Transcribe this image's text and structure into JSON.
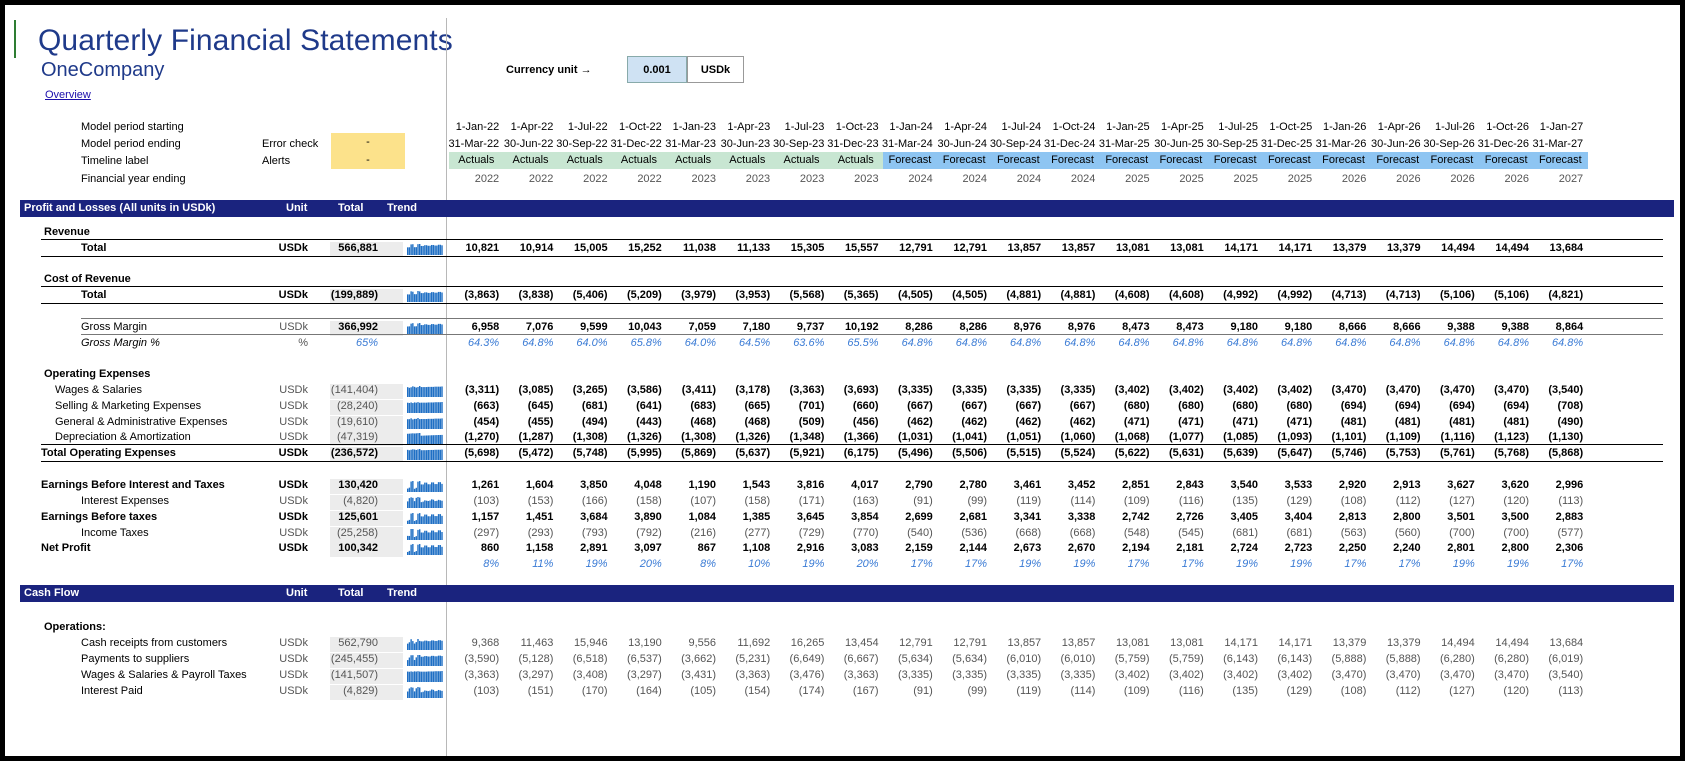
{
  "title": "Quarterly Financial Statements",
  "company": "OneCompany",
  "overview_link": "Overview",
  "currency": {
    "label": "Currency unit →",
    "value": "0.001",
    "unit": "USDk"
  },
  "meta_labels": {
    "period_start": "Model period starting",
    "period_end": "Model period ending",
    "timeline": "Timeline label",
    "fy": "Financial year ending",
    "error_check": "Error check",
    "alerts": "Alerts",
    "error_value": "-",
    "alerts_value": "-"
  },
  "periods": [
    {
      "start": "1-Jan-22",
      "end": "31-Mar-22",
      "label": "Actuals",
      "fy": "2022"
    },
    {
      "start": "1-Apr-22",
      "end": "30-Jun-22",
      "label": "Actuals",
      "fy": "2022"
    },
    {
      "start": "1-Jul-22",
      "end": "30-Sep-22",
      "label": "Actuals",
      "fy": "2022"
    },
    {
      "start": "1-Oct-22",
      "end": "31-Dec-22",
      "label": "Actuals",
      "fy": "2022"
    },
    {
      "start": "1-Jan-23",
      "end": "31-Mar-23",
      "label": "Actuals",
      "fy": "2023"
    },
    {
      "start": "1-Apr-23",
      "end": "30-Jun-23",
      "label": "Actuals",
      "fy": "2023"
    },
    {
      "start": "1-Jul-23",
      "end": "30-Sep-23",
      "label": "Actuals",
      "fy": "2023"
    },
    {
      "start": "1-Oct-23",
      "end": "31-Dec-23",
      "label": "Actuals",
      "fy": "2023"
    },
    {
      "start": "1-Jan-24",
      "end": "31-Mar-24",
      "label": "Forecast",
      "fy": "2024"
    },
    {
      "start": "1-Apr-24",
      "end": "30-Jun-24",
      "label": "Forecast",
      "fy": "2024"
    },
    {
      "start": "1-Jul-24",
      "end": "30-Sep-24",
      "label": "Forecast",
      "fy": "2024"
    },
    {
      "start": "1-Oct-24",
      "end": "31-Dec-24",
      "label": "Forecast",
      "fy": "2024"
    },
    {
      "start": "1-Jan-25",
      "end": "31-Mar-25",
      "label": "Forecast",
      "fy": "2025"
    },
    {
      "start": "1-Apr-25",
      "end": "30-Jun-25",
      "label": "Forecast",
      "fy": "2025"
    },
    {
      "start": "1-Jul-25",
      "end": "30-Sep-25",
      "label": "Forecast",
      "fy": "2025"
    },
    {
      "start": "1-Oct-25",
      "end": "31-Dec-25",
      "label": "Forecast",
      "fy": "2025"
    },
    {
      "start": "1-Jan-26",
      "end": "31-Mar-26",
      "label": "Forecast",
      "fy": "2026"
    },
    {
      "start": "1-Apr-26",
      "end": "30-Jun-26",
      "label": "Forecast",
      "fy": "2026"
    },
    {
      "start": "1-Jul-26",
      "end": "30-Sep-26",
      "label": "Forecast",
      "fy": "2026"
    },
    {
      "start": "1-Oct-26",
      "end": "31-Dec-26",
      "label": "Forecast",
      "fy": "2026"
    },
    {
      "start": "1-Jan-27",
      "end": "31-Mar-27",
      "label": "Forecast",
      "fy": "2027"
    }
  ],
  "colors": {
    "band": "#1a237e",
    "actuals": "#c8e6d2",
    "forecast": "#8ec5f2",
    "spark": "#1f6fc4",
    "alert": "#fce28b",
    "pct": "#3a7bd5"
  },
  "pl_header": {
    "title": "Profit and Losses (All units in USDk)",
    "unit": "Unit",
    "total": "Total",
    "trend": "Trend"
  },
  "cf_header": {
    "title": "Cash Flow",
    "unit": "Unit",
    "total": "Total",
    "trend": "Trend"
  },
  "sections": {
    "revenue": "Revenue",
    "cost_of_revenue": "Cost of Revenue",
    "opex": "Operating Expenses",
    "operations": "Operations:"
  },
  "rows": [
    {
      "id": "rev_total",
      "label": "Total",
      "unit": "USDk",
      "total": "566,881",
      "style": "total",
      "values": [
        "10,821",
        "10,914",
        "15,005",
        "15,252",
        "11,038",
        "11,133",
        "15,305",
        "15,557",
        "12,791",
        "12,791",
        "13,857",
        "13,857",
        "13,081",
        "13,081",
        "14,171",
        "14,171",
        "13,379",
        "13,379",
        "14,494",
        "14,494",
        "13,684"
      ]
    },
    {
      "id": "cor_total",
      "label": "Total",
      "unit": "USDk",
      "total": "(199,889)",
      "style": "total",
      "values": [
        "(3,863)",
        "(3,838)",
        "(5,406)",
        "(5,209)",
        "(3,979)",
        "(3,953)",
        "(5,568)",
        "(5,365)",
        "(4,505)",
        "(4,505)",
        "(4,881)",
        "(4,881)",
        "(4,608)",
        "(4,608)",
        "(4,992)",
        "(4,992)",
        "(4,713)",
        "(4,713)",
        "(5,106)",
        "(5,106)",
        "(4,821)"
      ]
    },
    {
      "id": "gross_margin",
      "label": "Gross Margin",
      "unit": "USDk",
      "total": "366,992",
      "style": "gm",
      "values": [
        "6,958",
        "7,076",
        "9,599",
        "10,043",
        "7,059",
        "7,180",
        "9,737",
        "10,192",
        "8,286",
        "8,286",
        "8,976",
        "8,976",
        "8,473",
        "8,473",
        "9,180",
        "9,180",
        "8,666",
        "8,666",
        "9,388",
        "9,388",
        "8,864"
      ]
    },
    {
      "id": "gross_margin_pct",
      "label": "Gross Margin %",
      "unit": "%",
      "total": "65%",
      "style": "pct",
      "values": [
        "64.3%",
        "64.8%",
        "64.0%",
        "65.8%",
        "64.0%",
        "64.5%",
        "63.6%",
        "65.5%",
        "64.8%",
        "64.8%",
        "64.8%",
        "64.8%",
        "64.8%",
        "64.8%",
        "64.8%",
        "64.8%",
        "64.8%",
        "64.8%",
        "64.8%",
        "64.8%",
        "64.8%"
      ]
    },
    {
      "id": "wages",
      "label": "Wages & Salaries",
      "unit": "USDk",
      "total": "(141,404)",
      "style": "sub",
      "values": [
        "(3,311)",
        "(3,085)",
        "(3,265)",
        "(3,586)",
        "(3,411)",
        "(3,178)",
        "(3,363)",
        "(3,693)",
        "(3,335)",
        "(3,335)",
        "(3,335)",
        "(3,335)",
        "(3,402)",
        "(3,402)",
        "(3,402)",
        "(3,402)",
        "(3,470)",
        "(3,470)",
        "(3,470)",
        "(3,470)",
        "(3,540)"
      ]
    },
    {
      "id": "selling",
      "label": "Selling & Marketing Expenses",
      "unit": "USDk",
      "total": "(28,240)",
      "style": "sub",
      "values": [
        "(663)",
        "(645)",
        "(681)",
        "(641)",
        "(683)",
        "(665)",
        "(701)",
        "(660)",
        "(667)",
        "(667)",
        "(667)",
        "(667)",
        "(680)",
        "(680)",
        "(680)",
        "(680)",
        "(694)",
        "(694)",
        "(694)",
        "(694)",
        "(708)"
      ]
    },
    {
      "id": "ga",
      "label": "General & Administrative Expenses",
      "unit": "USDk",
      "total": "(19,610)",
      "style": "sub",
      "values": [
        "(454)",
        "(455)",
        "(494)",
        "(443)",
        "(468)",
        "(468)",
        "(509)",
        "(456)",
        "(462)",
        "(462)",
        "(462)",
        "(462)",
        "(471)",
        "(471)",
        "(471)",
        "(471)",
        "(481)",
        "(481)",
        "(481)",
        "(481)",
        "(490)"
      ]
    },
    {
      "id": "da",
      "label": "Depreciation & Amortization",
      "unit": "USDk",
      "total": "(47,319)",
      "style": "sub",
      "values": [
        "(1,270)",
        "(1,287)",
        "(1,308)",
        "(1,326)",
        "(1,308)",
        "(1,326)",
        "(1,348)",
        "(1,366)",
        "(1,031)",
        "(1,041)",
        "(1,051)",
        "(1,060)",
        "(1,068)",
        "(1,077)",
        "(1,085)",
        "(1,093)",
        "(1,101)",
        "(1,109)",
        "(1,116)",
        "(1,123)",
        "(1,130)"
      ]
    },
    {
      "id": "total_opex",
      "label": "Total Operating Expenses",
      "unit": "USDk",
      "total": "(236,572)",
      "style": "total",
      "values": [
        "(5,698)",
        "(5,472)",
        "(5,748)",
        "(5,995)",
        "(5,869)",
        "(5,637)",
        "(5,921)",
        "(6,175)",
        "(5,496)",
        "(5,506)",
        "(5,515)",
        "(5,524)",
        "(5,622)",
        "(5,631)",
        "(5,639)",
        "(5,647)",
        "(5,746)",
        "(5,753)",
        "(5,761)",
        "(5,768)",
        "(5,868)"
      ]
    },
    {
      "id": "ebit",
      "label": "Earnings Before Interest and Taxes",
      "unit": "USDk",
      "total": "130,420",
      "style": "total",
      "values": [
        "1,261",
        "1,604",
        "3,850",
        "4,048",
        "1,190",
        "1,543",
        "3,816",
        "4,017",
        "2,790",
        "2,780",
        "3,461",
        "3,452",
        "2,851",
        "2,843",
        "3,540",
        "3,533",
        "2,920",
        "2,913",
        "3,627",
        "3,620",
        "2,996"
      ]
    },
    {
      "id": "interest",
      "label": "Interest Expenses",
      "unit": "USDk",
      "total": "(4,820)",
      "style": "plain",
      "values": [
        "(103)",
        "(153)",
        "(166)",
        "(158)",
        "(107)",
        "(158)",
        "(171)",
        "(163)",
        "(91)",
        "(99)",
        "(119)",
        "(114)",
        "(109)",
        "(116)",
        "(135)",
        "(129)",
        "(108)",
        "(112)",
        "(127)",
        "(120)",
        "(113)"
      ]
    },
    {
      "id": "ebt",
      "label": "Earnings Before taxes",
      "unit": "USDk",
      "total": "125,601",
      "style": "total",
      "values": [
        "1,157",
        "1,451",
        "3,684",
        "3,890",
        "1,084",
        "1,385",
        "3,645",
        "3,854",
        "2,699",
        "2,681",
        "3,341",
        "3,338",
        "2,742",
        "2,726",
        "3,405",
        "3,404",
        "2,813",
        "2,800",
        "3,501",
        "3,500",
        "2,883"
      ]
    },
    {
      "id": "income_taxes",
      "label": "Income Taxes",
      "unit": "USDk",
      "total": "(25,258)",
      "style": "plain",
      "values": [
        "(297)",
        "(293)",
        "(793)",
        "(792)",
        "(216)",
        "(277)",
        "(729)",
        "(770)",
        "(540)",
        "(536)",
        "(668)",
        "(668)",
        "(548)",
        "(545)",
        "(681)",
        "(681)",
        "(563)",
        "(560)",
        "(700)",
        "(700)",
        "(577)"
      ]
    },
    {
      "id": "net_profit",
      "label": "Net Profit",
      "unit": "USDk",
      "total": "100,342",
      "style": "total",
      "values": [
        "860",
        "1,158",
        "2,891",
        "3,097",
        "867",
        "1,108",
        "2,916",
        "3,083",
        "2,159",
        "2,144",
        "2,673",
        "2,670",
        "2,194",
        "2,181",
        "2,724",
        "2,723",
        "2,250",
        "2,240",
        "2,801",
        "2,800",
        "2,306"
      ]
    },
    {
      "id": "net_margin",
      "label": "",
      "unit": "",
      "total": "",
      "style": "pct",
      "values": [
        "8%",
        "11%",
        "19%",
        "20%",
        "8%",
        "10%",
        "19%",
        "20%",
        "17%",
        "17%",
        "19%",
        "19%",
        "17%",
        "17%",
        "19%",
        "19%",
        "17%",
        "17%",
        "19%",
        "19%",
        "17%"
      ]
    },
    {
      "id": "cash_receipts",
      "label": "Cash receipts from customers",
      "unit": "USDk",
      "total": "562,790",
      "style": "plain",
      "values": [
        "9,368",
        "11,463",
        "15,946",
        "13,190",
        "9,556",
        "11,692",
        "16,265",
        "13,454",
        "12,791",
        "12,791",
        "13,857",
        "13,857",
        "13,081",
        "13,081",
        "14,171",
        "14,171",
        "13,379",
        "13,379",
        "14,494",
        "14,494",
        "13,684"
      ]
    },
    {
      "id": "payments_suppliers",
      "label": "Payments to suppliers",
      "unit": "USDk",
      "total": "(245,455)",
      "style": "plain",
      "values": [
        "(3,590)",
        "(5,128)",
        "(6,518)",
        "(6,537)",
        "(3,662)",
        "(5,231)",
        "(6,649)",
        "(6,667)",
        "(5,634)",
        "(5,634)",
        "(6,010)",
        "(6,010)",
        "(5,759)",
        "(5,759)",
        "(6,143)",
        "(6,143)",
        "(5,888)",
        "(5,888)",
        "(6,280)",
        "(6,280)",
        "(6,019)"
      ]
    },
    {
      "id": "wages_payroll",
      "label": "Wages & Salaries & Payroll Taxes",
      "unit": "USDk",
      "total": "(141,507)",
      "style": "plain",
      "values": [
        "(3,363)",
        "(3,297)",
        "(3,408)",
        "(3,297)",
        "(3,431)",
        "(3,363)",
        "(3,476)",
        "(3,363)",
        "(3,335)",
        "(3,335)",
        "(3,335)",
        "(3,335)",
        "(3,402)",
        "(3,402)",
        "(3,402)",
        "(3,402)",
        "(3,470)",
        "(3,470)",
        "(3,470)",
        "(3,470)",
        "(3,540)"
      ]
    },
    {
      "id": "interest_paid",
      "label": "Interest Paid",
      "unit": "USDk",
      "total": "(4,829)",
      "style": "plain",
      "values": [
        "(103)",
        "(151)",
        "(170)",
        "(164)",
        "(105)",
        "(154)",
        "(174)",
        "(167)",
        "(91)",
        "(99)",
        "(119)",
        "(114)",
        "(109)",
        "(116)",
        "(135)",
        "(129)",
        "(108)",
        "(112)",
        "(127)",
        "(120)",
        "(113)"
      ]
    }
  ]
}
